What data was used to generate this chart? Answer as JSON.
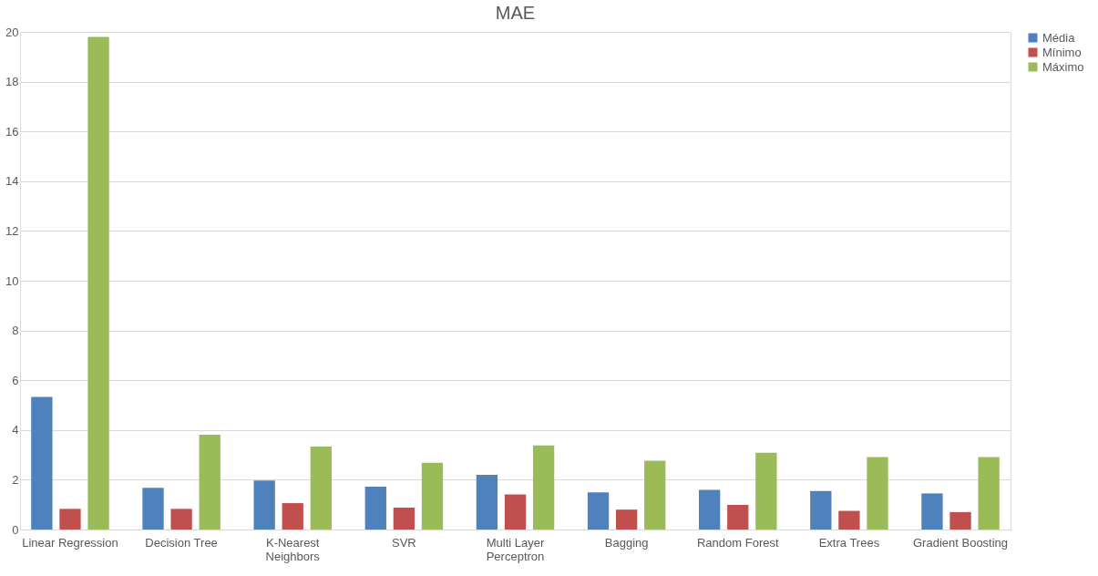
{
  "chart_data": {
    "type": "bar",
    "title": "MAE",
    "categories": [
      "Linear Regression",
      "Decision Tree",
      "K-Nearest Neighbors",
      "SVR",
      "Multi Layer Perceptron",
      "Bagging",
      "Random Forest",
      "Extra Trees",
      "Gradient Boosting"
    ],
    "series": [
      {
        "name": "Média",
        "color": "#4f81bd",
        "values": [
          5.33,
          1.68,
          1.97,
          1.72,
          2.2,
          1.49,
          1.59,
          1.55,
          1.45
        ]
      },
      {
        "name": "Mínimo",
        "color": "#c0504d",
        "values": [
          0.83,
          0.83,
          1.06,
          0.88,
          1.41,
          0.8,
          0.99,
          0.75,
          0.7
        ]
      },
      {
        "name": "Máximo",
        "color": "#9bbb59",
        "values": [
          19.8,
          3.81,
          3.33,
          2.68,
          3.38,
          2.77,
          3.09,
          2.91,
          2.91
        ]
      }
    ],
    "ylim": [
      0,
      20
    ],
    "yticks": [
      0,
      2,
      4,
      6,
      8,
      10,
      12,
      14,
      16,
      18,
      20
    ],
    "grid": "y",
    "legend": "right"
  }
}
